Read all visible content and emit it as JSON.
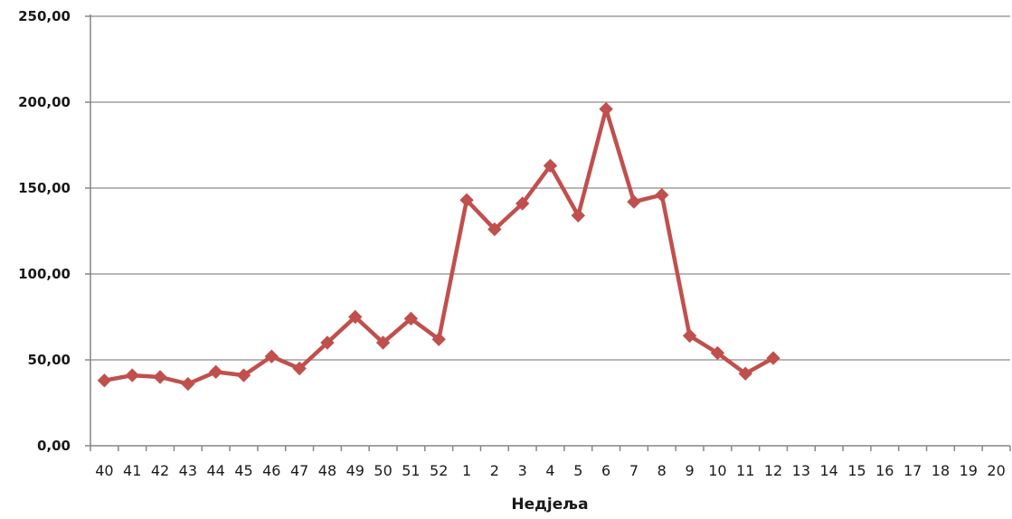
{
  "chart_data": {
    "type": "line",
    "title": "",
    "xlabel": "Недјеља",
    "ylabel": "",
    "categories": [
      "40",
      "41",
      "42",
      "43",
      "44",
      "45",
      "46",
      "47",
      "48",
      "49",
      "50",
      "51",
      "52",
      "1",
      "2",
      "3",
      "4",
      "5",
      "6",
      "7",
      "8",
      "9",
      "10",
      "11",
      "12",
      "13",
      "14",
      "15",
      "16",
      "17",
      "18",
      "19",
      "20"
    ],
    "y_tick_labels": [
      "0,00",
      "50,00",
      "100,00",
      "150,00",
      "200,00",
      "250,00"
    ],
    "y_ticks": [
      0,
      50,
      100,
      150,
      200,
      250
    ],
    "ylim": [
      0,
      250
    ],
    "grid": true,
    "legend": "none",
    "series": [
      {
        "color": "#c0504d",
        "values": [
          38,
          41,
          40,
          36,
          43,
          41,
          52,
          45,
          60,
          75,
          60,
          74,
          62,
          143,
          126,
          141,
          163,
          134,
          196,
          142,
          146,
          64,
          54,
          42,
          51,
          null,
          null,
          null,
          null,
          null,
          null,
          null,
          null
        ]
      }
    ]
  }
}
